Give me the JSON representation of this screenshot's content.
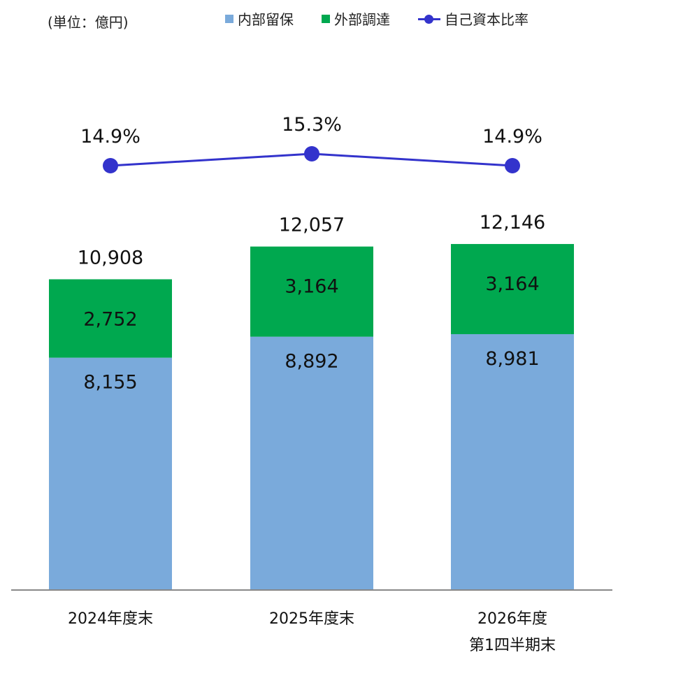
{
  "unit_label": "(単位：億円)",
  "colors": {
    "internal": "#7aaadb",
    "external": "#00a84f",
    "ratio": "#3333cc",
    "axis": "#888888"
  },
  "legend": {
    "internal": "内部留保",
    "external": "外部調達",
    "ratio": "自己資本比率"
  },
  "chart_data": {
    "type": "bar",
    "stacked": true,
    "categories": [
      [
        "2024年度末"
      ],
      [
        "2025年度末"
      ],
      [
        "2026年度",
        "第1四半期末"
      ]
    ],
    "series": [
      {
        "name": "内部留保",
        "values": [
          8155,
          8892,
          8981
        ],
        "labels": [
          "8,155",
          "8,892",
          "8,981"
        ]
      },
      {
        "name": "外部調達",
        "values": [
          2752,
          3164,
          3164
        ],
        "labels": [
          "2,752",
          "3,164",
          "3,164"
        ]
      }
    ],
    "totals": {
      "values": [
        10908,
        12057,
        12146
      ],
      "labels": [
        "10,908",
        "12,057",
        "12,146"
      ]
    },
    "line_series": {
      "name": "自己資本比率",
      "type": "line",
      "values": [
        14.9,
        15.3,
        14.9
      ],
      "labels": [
        "14.9%",
        "15.3%",
        "14.9%"
      ]
    },
    "ylim": [
      0,
      12500
    ],
    "legend_position": "top",
    "grid": false
  }
}
